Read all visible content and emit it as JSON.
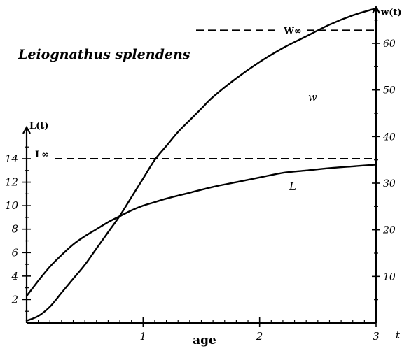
{
  "chart_data": {
    "type": "line",
    "title": "Leiognathus splendens",
    "xlabel": "age",
    "x_axis_end_label": "t",
    "y_left_label": "L(t)",
    "y_right_label": "w(t)",
    "xlim": [
      0,
      3
    ],
    "ylim_left": [
      0,
      16
    ],
    "ylim_right": [
      0,
      65
    ],
    "grid": false,
    "x_ticks": [
      {
        "v": 1,
        "label": "1"
      },
      {
        "v": 2,
        "label": "2"
      },
      {
        "v": 3,
        "label": "3"
      }
    ],
    "y_left_ticks": [
      {
        "v": 2,
        "label": "2"
      },
      {
        "v": 4,
        "label": "4"
      },
      {
        "v": 6,
        "label": "6"
      },
      {
        "v": 8,
        "label": "8"
      },
      {
        "v": 10,
        "label": "10"
      },
      {
        "v": 12,
        "label": "12"
      },
      {
        "v": 14,
        "label": "14"
      }
    ],
    "y_right_ticks": [
      {
        "v": 10,
        "label": "10"
      },
      {
        "v": 20,
        "label": "20"
      },
      {
        "v": 30,
        "label": "30"
      },
      {
        "v": 40,
        "label": "40"
      },
      {
        "v": 50,
        "label": "50"
      },
      {
        "v": 60,
        "label": "60"
      }
    ],
    "asymptotes": [
      {
        "name": "L∞",
        "axis": "left",
        "value": 14.0
      },
      {
        "name": "W∞",
        "axis": "right",
        "value": 62.8
      }
    ],
    "series": [
      {
        "name": "L",
        "axis": "left",
        "x": [
          0,
          0.1,
          0.2,
          0.3,
          0.4,
          0.5,
          0.6,
          0.7,
          0.8,
          0.9,
          1.0,
          1.1,
          1.2,
          1.4,
          1.6,
          1.8,
          2.0,
          2.2,
          2.4,
          2.6,
          2.8,
          3.0
        ],
        "values": [
          2.3,
          3.6,
          4.8,
          5.8,
          6.7,
          7.4,
          8.0,
          8.6,
          9.1,
          9.6,
          10.0,
          10.3,
          10.6,
          11.1,
          11.6,
          12.0,
          12.4,
          12.8,
          13.0,
          13.2,
          13.35,
          13.5
        ]
      },
      {
        "name": "w",
        "axis": "right",
        "x": [
          0,
          0.1,
          0.2,
          0.3,
          0.4,
          0.5,
          0.6,
          0.7,
          0.8,
          0.9,
          1.0,
          1.1,
          1.2,
          1.3,
          1.4,
          1.5,
          1.6,
          1.8,
          2.0,
          2.2,
          2.4,
          2.6,
          2.8,
          3.0
        ],
        "values": [
          0.5,
          1.5,
          3.5,
          6.5,
          9.5,
          12.5,
          16.0,
          19.5,
          23.0,
          27.0,
          31.0,
          35.0,
          38.0,
          41.0,
          43.5,
          46.0,
          48.5,
          52.5,
          56.0,
          59.0,
          61.5,
          64.0,
          66.0,
          67.5
        ]
      }
    ]
  }
}
